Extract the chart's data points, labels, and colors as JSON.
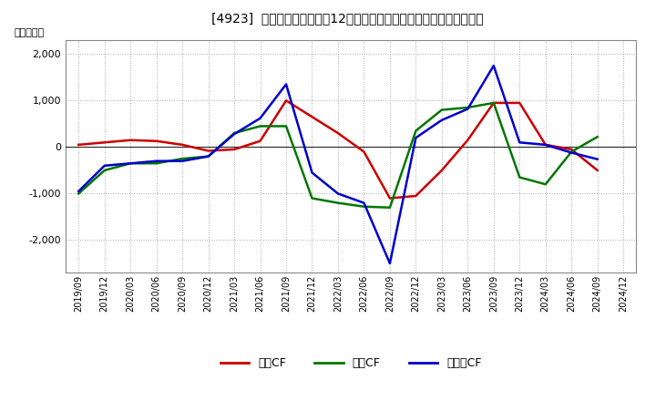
{
  "title": "[4923]  キャッシュフローの12か月移動合計の対前年同期増減額の推移",
  "ylabel": "（百万円）",
  "background_color": "#ffffff",
  "plot_bg_color": "#ffffff",
  "grid_color": "#aaaaaa",
  "x_labels": [
    "2019/09",
    "2019/12",
    "2020/03",
    "2020/06",
    "2020/09",
    "2020/12",
    "2021/03",
    "2021/06",
    "2021/09",
    "2021/12",
    "2022/03",
    "2022/06",
    "2022/09",
    "2022/12",
    "2023/03",
    "2023/06",
    "2023/09",
    "2023/12",
    "2024/03",
    "2024/06",
    "2024/09",
    "2024/12"
  ],
  "series": {
    "営業CF": {
      "color": "#cc0000",
      "values": [
        50,
        100,
        150,
        130,
        50,
        -80,
        -50,
        130,
        1000,
        650,
        300,
        -100,
        -1100,
        -1050,
        -500,
        150,
        950,
        950,
        50,
        -50,
        -500,
        null
      ]
    },
    "投賃CF": {
      "color": "#007700",
      "values": [
        -1000,
        -500,
        -350,
        -350,
        -250,
        -200,
        300,
        450,
        450,
        -1100,
        -1200,
        -1280,
        -1300,
        350,
        800,
        850,
        950,
        -650,
        -800,
        -100,
        220,
        null
      ]
    },
    "フリーCF": {
      "color": "#0000cc",
      "values": [
        -950,
        -400,
        -350,
        -300,
        -300,
        -200,
        280,
        620,
        1350,
        -550,
        -1000,
        -1200,
        -2500,
        200,
        580,
        820,
        1750,
        100,
        50,
        -120,
        -260,
        null
      ]
    }
  },
  "ylim": [
    -2700,
    2300
  ],
  "yticks": [
    -2000,
    -1000,
    0,
    1000,
    2000
  ],
  "legend_labels": [
    "営業CF",
    "投賃CF",
    "フリーCF"
  ],
  "legend_colors": [
    "#cc0000",
    "#007700",
    "#0000cc"
  ]
}
